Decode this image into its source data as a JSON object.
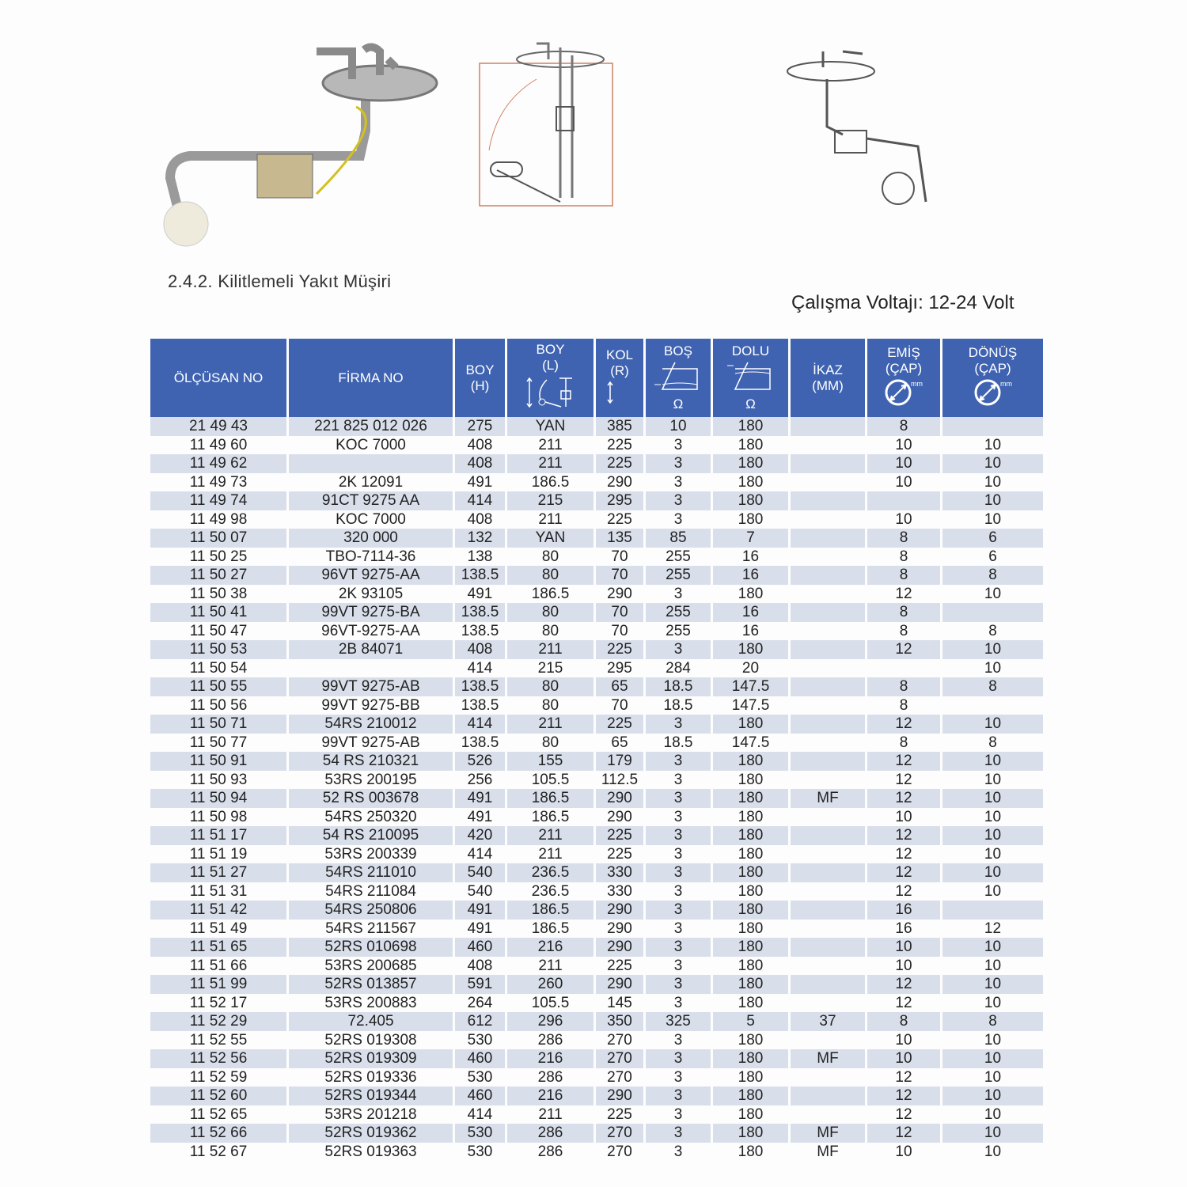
{
  "section_title": "2.4.2. Kilitlemeli Yakıt Müşiri",
  "voltage": "Çalışma Voltajı: 12-24 Volt",
  "header": [
    {
      "l1": "ÖLÇÜSAN NO",
      "l2": "",
      "icon": ""
    },
    {
      "l1": "FİRMA NO",
      "l2": "",
      "icon": ""
    },
    {
      "l1": "BOY",
      "l2": "(H)",
      "icon": ""
    },
    {
      "l1": "BOY",
      "l2": "(L)",
      "icon": "float-arm-diagram-icon"
    },
    {
      "l1": "KOL",
      "l2": "(R)",
      "icon": "length-arrow-icon"
    },
    {
      "l1": "BOŞ",
      "l2": "Ω",
      "icon": "empty-tank-icon"
    },
    {
      "l1": "DOLU",
      "l2": "Ω",
      "icon": "full-tank-icon"
    },
    {
      "l1": "İKAZ",
      "l2": "(MM)",
      "icon": ""
    },
    {
      "l1": "EMİŞ",
      "l2": "(ÇAP)",
      "icon": "diameter-icon"
    },
    {
      "l1": "DÖNÜŞ",
      "l2": "(ÇAP)",
      "icon": "diameter-icon"
    }
  ],
  "diameter_unit": "mm",
  "header_color": "#3f63b1",
  "row_shade_color": "#d9dfea",
  "rows": [
    [
      "21 49 43",
      "221 825 012 026",
      "275",
      "YAN",
      "385",
      "10",
      "180",
      "",
      "8",
      ""
    ],
    [
      "11 49 60",
      "KOC 7000",
      "408",
      "211",
      "225",
      "3",
      "180",
      "",
      "10",
      "10"
    ],
    [
      "11 49 62",
      "",
      "408",
      "211",
      "225",
      "3",
      "180",
      "",
      "10",
      "10"
    ],
    [
      "11 49 73",
      "2K 12091",
      "491",
      "186.5",
      "290",
      "3",
      "180",
      "",
      "10",
      "10"
    ],
    [
      "11 49 74",
      "91CT 9275 AA",
      "414",
      "215",
      "295",
      "3",
      "180",
      "",
      "",
      "10"
    ],
    [
      "11 49 98",
      "KOC 7000",
      "408",
      "211",
      "225",
      "3",
      "180",
      "",
      "10",
      "10"
    ],
    [
      "11 50 07",
      "320 000",
      "132",
      "YAN",
      "135",
      "85",
      "7",
      "",
      "8",
      "6"
    ],
    [
      "11 50 25",
      "TBO-7114-36",
      "138",
      "80",
      "70",
      "255",
      "16",
      "",
      "8",
      "6"
    ],
    [
      "11 50 27",
      "96VT 9275-AA",
      "138.5",
      "80",
      "70",
      "255",
      "16",
      "",
      "8",
      "8"
    ],
    [
      "11 50 38",
      "2K 93105",
      "491",
      "186.5",
      "290",
      "3",
      "180",
      "",
      "12",
      "10"
    ],
    [
      "11 50 41",
      "99VT 9275-BA",
      "138.5",
      "80",
      "70",
      "255",
      "16",
      "",
      "8",
      ""
    ],
    [
      "11 50 47",
      "96VT-9275-AA",
      "138.5",
      "80",
      "70",
      "255",
      "16",
      "",
      "8",
      "8"
    ],
    [
      "11 50 53",
      "2B 84071",
      "408",
      "211",
      "225",
      "3",
      "180",
      "",
      "12",
      "10"
    ],
    [
      "11 50 54",
      "",
      "414",
      "215",
      "295",
      "284",
      "20",
      "",
      "",
      "10"
    ],
    [
      "11 50 55",
      "99VT 9275-AB",
      "138.5",
      "80",
      "65",
      "18.5",
      "147.5",
      "",
      "8",
      "8"
    ],
    [
      "11 50 56",
      "99VT 9275-BB",
      "138.5",
      "80",
      "70",
      "18.5",
      "147.5",
      "",
      "8",
      ""
    ],
    [
      "11 50 71",
      "54RS 210012",
      "414",
      "211",
      "225",
      "3",
      "180",
      "",
      "12",
      "10"
    ],
    [
      "11 50 77",
      "99VT 9275-AB",
      "138.5",
      "80",
      "65",
      "18.5",
      "147.5",
      "",
      "8",
      "8"
    ],
    [
      "11 50 91",
      "54 RS 210321",
      "526",
      "155",
      "179",
      "3",
      "180",
      "",
      "12",
      "10"
    ],
    [
      "11 50 93",
      "53RS 200195",
      "256",
      "105.5",
      "112.5",
      "3",
      "180",
      "",
      "12",
      "10"
    ],
    [
      "11 50 94",
      "52 RS 003678",
      "491",
      "186.5",
      "290",
      "3",
      "180",
      "MF",
      "12",
      "10"
    ],
    [
      "11 50 98",
      "54RS 250320",
      "491",
      "186.5",
      "290",
      "3",
      "180",
      "",
      "10",
      "10"
    ],
    [
      "11 51 17",
      "54 RS 210095",
      "420",
      "211",
      "225",
      "3",
      "180",
      "",
      "12",
      "10"
    ],
    [
      "11 51 19",
      "53RS 200339",
      "414",
      "211",
      "225",
      "3",
      "180",
      "",
      "12",
      "10"
    ],
    [
      "11 51 27",
      "54RS 211010",
      "540",
      "236.5",
      "330",
      "3",
      "180",
      "",
      "12",
      "10"
    ],
    [
      "11 51 31",
      "54RS 211084",
      "540",
      "236.5",
      "330",
      "3",
      "180",
      "",
      "12",
      "10"
    ],
    [
      "11 51 42",
      "54RS 250806",
      "491",
      "186.5",
      "290",
      "3",
      "180",
      "",
      "16",
      ""
    ],
    [
      "11 51 49",
      "54RS 211567",
      "491",
      "186.5",
      "290",
      "3",
      "180",
      "",
      "16",
      "12"
    ],
    [
      "11 51 65",
      "52RS 010698",
      "460",
      "216",
      "290",
      "3",
      "180",
      "",
      "10",
      "10"
    ],
    [
      "11 51 66",
      "53RS 200685",
      "408",
      "211",
      "225",
      "3",
      "180",
      "",
      "10",
      "10"
    ],
    [
      "11 51 99",
      "52RS 013857",
      "591",
      "260",
      "290",
      "3",
      "180",
      "",
      "12",
      "10"
    ],
    [
      "11 52 17",
      "53RS 200883",
      "264",
      "105.5",
      "145",
      "3",
      "180",
      "",
      "12",
      "10"
    ],
    [
      "11 52 29",
      "72.405",
      "612",
      "296",
      "350",
      "325",
      "5",
      "37",
      "8",
      "8"
    ],
    [
      "11 52 55",
      "52RS 019308",
      "530",
      "286",
      "270",
      "3",
      "180",
      "",
      "10",
      "10"
    ],
    [
      "11 52 56",
      "52RS 019309",
      "460",
      "216",
      "270",
      "3",
      "180",
      "MF",
      "10",
      "10"
    ],
    [
      "11 52 59",
      "52RS 019336",
      "530",
      "286",
      "270",
      "3",
      "180",
      "",
      "12",
      "10"
    ],
    [
      "11 52 60",
      "52RS 019344",
      "460",
      "216",
      "290",
      "3",
      "180",
      "",
      "12",
      "10"
    ],
    [
      "11 52 65",
      "53RS 201218",
      "414",
      "211",
      "225",
      "3",
      "180",
      "",
      "12",
      "10"
    ],
    [
      "11 52 66",
      "52RS 019362",
      "530",
      "286",
      "270",
      "3",
      "180",
      "MF",
      "12",
      "10"
    ],
    [
      "11 52 67",
      "52RS 019363",
      "530",
      "286",
      "270",
      "3",
      "180",
      "MF",
      "10",
      "10"
    ]
  ]
}
